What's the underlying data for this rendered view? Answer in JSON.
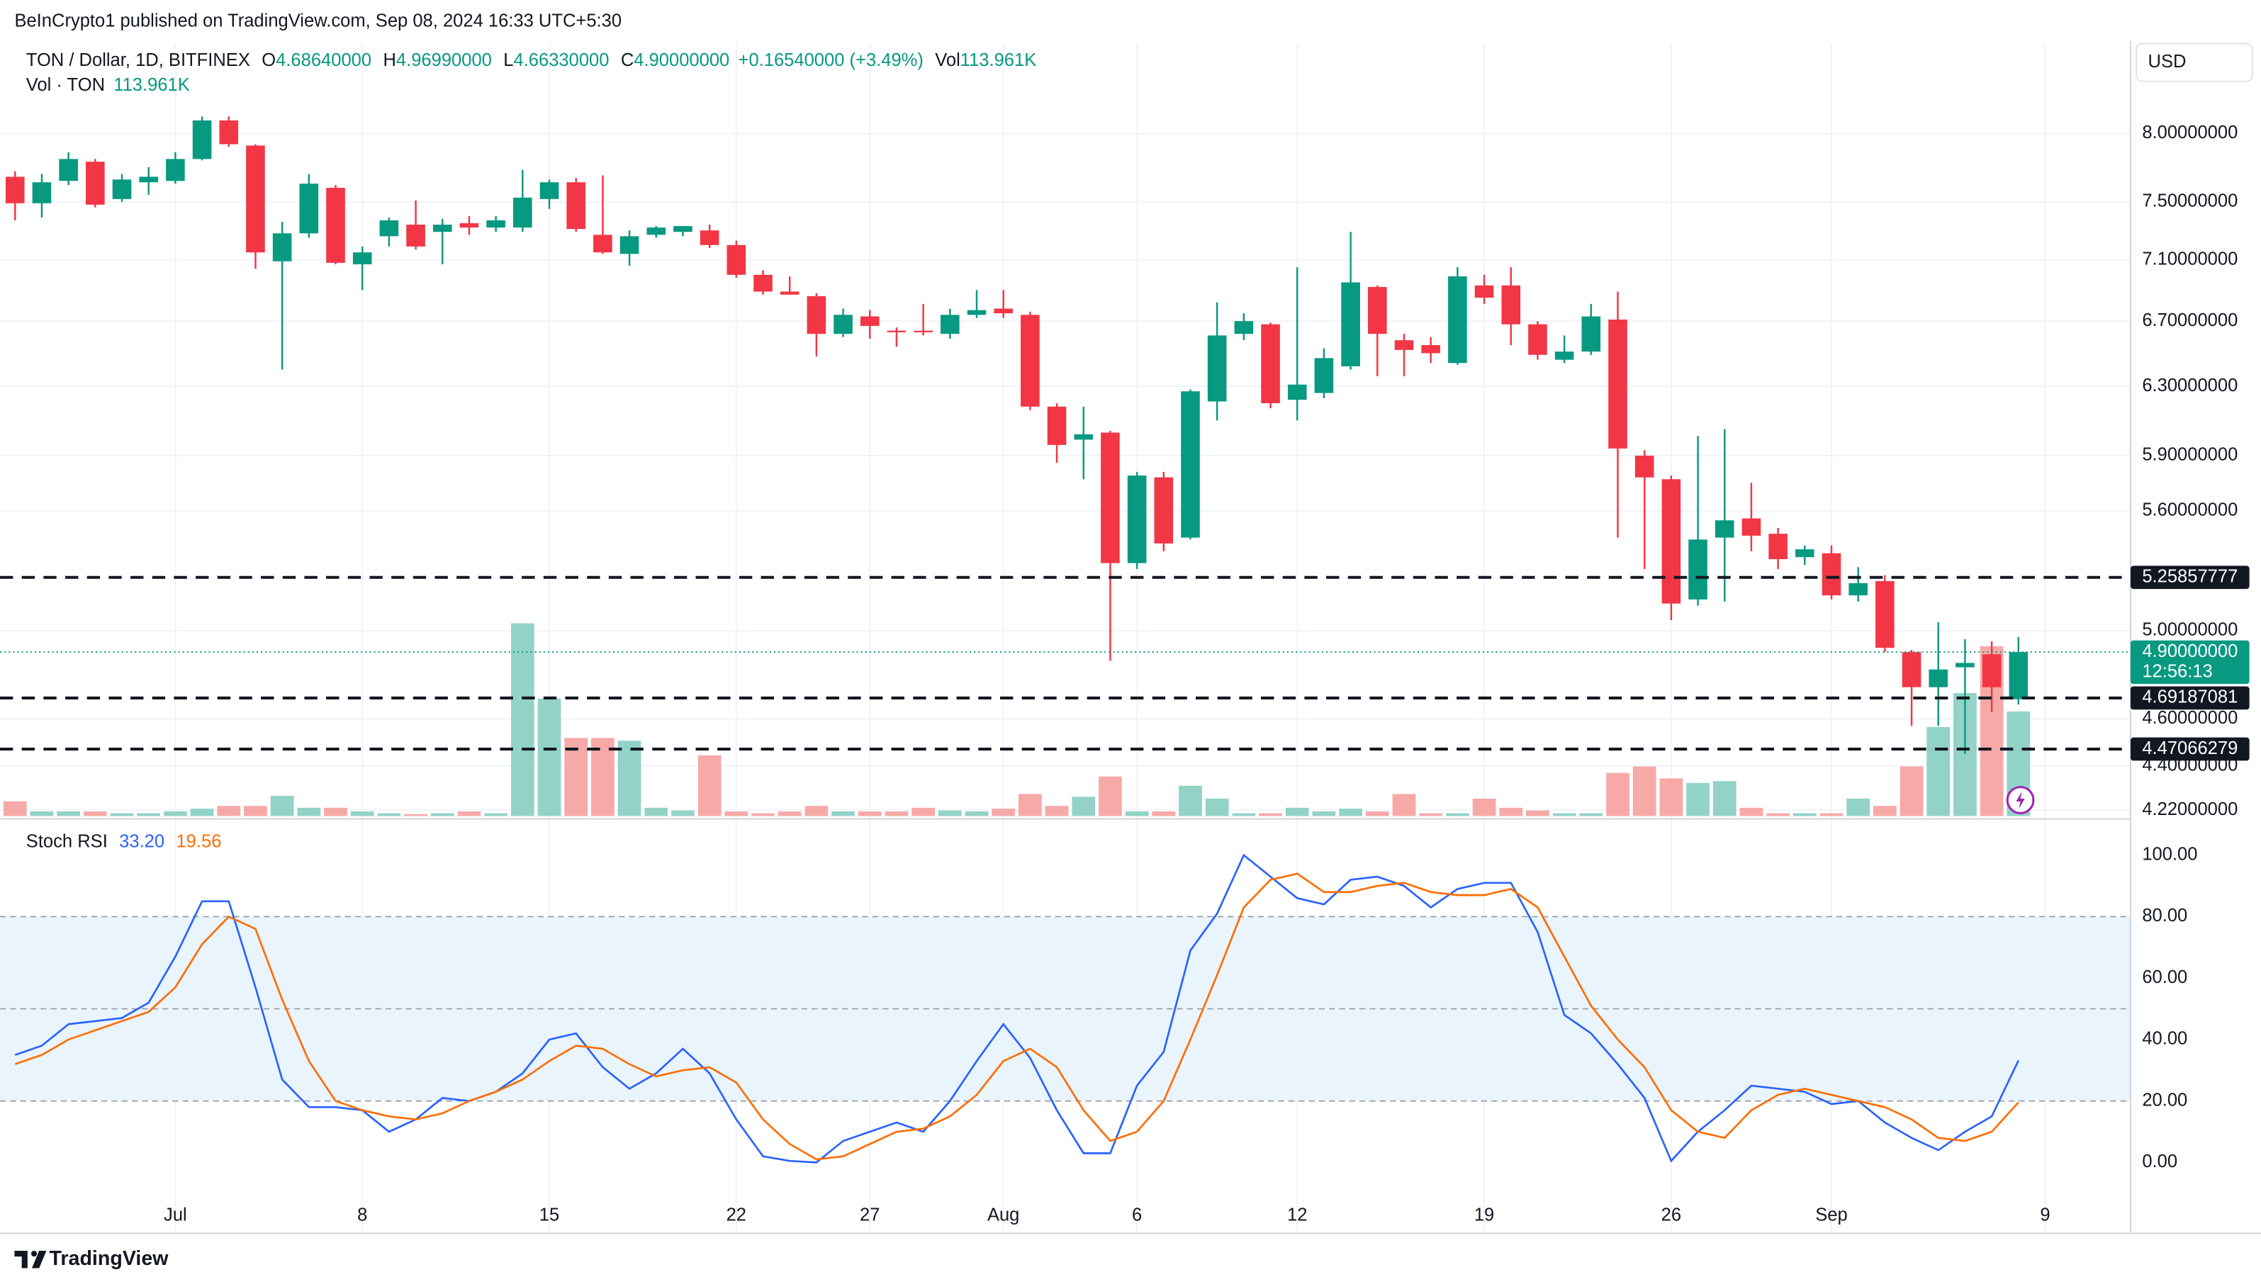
{
  "header": {
    "publisher": "BeInCrypto1 published on TradingView.com, Sep 08, 2024 16:33 UTC+5:30",
    "currency": "USD",
    "brand": "TradingView"
  },
  "chart_data": [
    {
      "type": "candlestick",
      "title": "TON / Dollar, 1D, BITFINEX",
      "ohlc_summary": [
        {
          "key": "O",
          "value": "4.68640000"
        },
        {
          "key": "H",
          "value": "4.96990000"
        },
        {
          "key": "L",
          "value": "4.66330000"
        },
        {
          "key": "C",
          "value": "4.90000000"
        }
      ],
      "change": "+0.16540000 (+3.49%)",
      "vol_key": "Vol",
      "vol_value": "113.961K",
      "volume_title": "Vol · TON",
      "volume_value": "113.961K",
      "categories": [
        "Jun 25",
        "Jun 26",
        "Jun 27",
        "Jun 28",
        "Jun 29",
        "Jun 30",
        "Jul 1",
        "Jul 2",
        "Jul 3",
        "Jul 4",
        "Jul 5",
        "Jul 6",
        "Jul 7",
        "Jul 8",
        "Jul 9",
        "Jul 10",
        "Jul 11",
        "Jul 12",
        "Jul 13",
        "Jul 14",
        "Jul 15",
        "Jul 16",
        "Jul 17",
        "Jul 18",
        "Jul 19",
        "Jul 20",
        "Jul 21",
        "Jul 22",
        "Jul 23",
        "Jul 24",
        "Jul 25",
        "Jul 26",
        "Jul 27",
        "Jul 28",
        "Jul 29",
        "Jul 30",
        "Jul 31",
        "Aug 1",
        "Aug 2",
        "Aug 3",
        "Aug 4",
        "Aug 5",
        "Aug 6",
        "Aug 7",
        "Aug 8",
        "Aug 9",
        "Aug 10",
        "Aug 11",
        "Aug 12",
        "Aug 13",
        "Aug 14",
        "Aug 15",
        "Aug 16",
        "Aug 17",
        "Aug 18",
        "Aug 19",
        "Aug 20",
        "Aug 21",
        "Aug 22",
        "Aug 23",
        "Aug 24",
        "Aug 25",
        "Aug 26",
        "Aug 27",
        "Aug 28",
        "Aug 29",
        "Aug 30",
        "Aug 31",
        "Sep 1",
        "Sep 2",
        "Sep 3",
        "Sep 4",
        "Sep 5",
        "Sep 6",
        "Sep 7",
        "Sep 8"
      ],
      "open": [
        7.68,
        7.49,
        7.65,
        7.79,
        7.52,
        7.64,
        7.65,
        7.81,
        8.1,
        7.91,
        7.09,
        7.28,
        7.6,
        7.07,
        7.26,
        7.34,
        7.29,
        7.35,
        7.32,
        7.32,
        7.52,
        7.64,
        7.27,
        7.14,
        7.27,
        7.29,
        7.3,
        7.2,
        7.0,
        6.89,
        6.86,
        6.62,
        6.73,
        6.64,
        6.64,
        6.62,
        6.74,
        6.78,
        6.74,
        6.18,
        5.99,
        6.03,
        5.33,
        5.78,
        5.46,
        6.21,
        6.62,
        6.68,
        6.22,
        6.26,
        6.42,
        6.92,
        6.58,
        6.55,
        6.44,
        6.93,
        6.93,
        6.68,
        6.46,
        6.51,
        6.71,
        5.9,
        5.77,
        5.15,
        5.46,
        5.56,
        5.48,
        5.36,
        5.38,
        5.17,
        5.24,
        4.9,
        4.74,
        4.83,
        4.89,
        4.6864
      ],
      "high": [
        7.72,
        7.7,
        7.86,
        7.81,
        7.7,
        7.75,
        7.86,
        8.13,
        8.13,
        7.92,
        7.36,
        7.7,
        7.62,
        7.19,
        7.39,
        7.51,
        7.38,
        7.4,
        7.4,
        7.73,
        7.66,
        7.67,
        7.69,
        7.3,
        7.33,
        7.33,
        7.34,
        7.23,
        7.03,
        6.99,
        6.88,
        6.78,
        6.77,
        6.66,
        6.81,
        6.78,
        6.9,
        6.9,
        6.76,
        6.2,
        6.18,
        6.04,
        5.81,
        5.81,
        6.28,
        6.82,
        6.75,
        6.69,
        7.05,
        6.53,
        7.29,
        6.93,
        6.62,
        6.6,
        7.05,
        7.0,
        7.05,
        6.7,
        6.61,
        6.81,
        6.89,
        5.93,
        5.79,
        6.01,
        6.05,
        5.75,
        5.51,
        5.42,
        5.42,
        5.31,
        5.27,
        4.91,
        5.04,
        4.96,
        4.95,
        4.9699
      ],
      "low": [
        7.37,
        7.39,
        7.62,
        7.46,
        7.5,
        7.55,
        7.63,
        7.8,
        7.9,
        7.04,
        6.4,
        7.25,
        7.07,
        6.9,
        7.19,
        7.17,
        7.07,
        7.27,
        7.29,
        7.29,
        7.45,
        7.29,
        7.14,
        7.06,
        7.25,
        7.26,
        7.18,
        6.98,
        6.87,
        6.87,
        6.48,
        6.6,
        6.59,
        6.54,
        6.61,
        6.59,
        6.72,
        6.72,
        6.16,
        5.86,
        5.77,
        4.86,
        5.3,
        5.39,
        5.45,
        6.1,
        6.58,
        6.17,
        6.1,
        6.23,
        6.4,
        6.36,
        6.36,
        6.44,
        6.43,
        6.81,
        6.55,
        6.46,
        6.44,
        6.49,
        5.46,
        5.3,
        5.05,
        5.12,
        5.14,
        5.39,
        5.3,
        5.32,
        5.15,
        5.14,
        4.9,
        4.57,
        4.57,
        4.45,
        4.63,
        4.6633
      ],
      "close": [
        7.49,
        7.64,
        7.81,
        7.48,
        7.66,
        7.68,
        7.81,
        8.1,
        7.92,
        7.15,
        7.28,
        7.63,
        7.08,
        7.15,
        7.37,
        7.19,
        7.34,
        7.32,
        7.37,
        7.53,
        7.64,
        7.31,
        7.15,
        7.26,
        7.32,
        7.33,
        7.2,
        7.0,
        6.89,
        6.87,
        6.62,
        6.74,
        6.67,
        6.63,
        6.63,
        6.74,
        6.77,
        6.75,
        6.18,
        5.96,
        6.02,
        5.33,
        5.79,
        5.43,
        6.27,
        6.61,
        6.7,
        6.2,
        6.31,
        6.47,
        6.95,
        6.62,
        6.52,
        6.5,
        6.99,
        6.85,
        6.68,
        6.49,
        6.51,
        6.73,
        5.94,
        5.78,
        5.13,
        5.45,
        5.55,
        5.47,
        5.35,
        5.4,
        5.17,
        5.23,
        4.92,
        4.74,
        4.82,
        4.85,
        4.74,
        4.9
      ],
      "volume": [
        16,
        5,
        5,
        5,
        3,
        3,
        5,
        8,
        11,
        11,
        22,
        9,
        9,
        5,
        3,
        2,
        3,
        5,
        3,
        210,
        128,
        85,
        85,
        82,
        9,
        6,
        66,
        5,
        3,
        5,
        11,
        5,
        5,
        5,
        9,
        6,
        5,
        8,
        24,
        11,
        21,
        43,
        5,
        5,
        33,
        19,
        3,
        3,
        9,
        5,
        8,
        5,
        24,
        3,
        3,
        19,
        9,
        6,
        3,
        3,
        47,
        54,
        41,
        36,
        38,
        9,
        3,
        3,
        3,
        19,
        11,
        54,
        97,
        134,
        185,
        113.961
      ],
      "up_color": "#089981",
      "down_color": "#f23645",
      "up_volume_color": "#92d2c7",
      "down_volume_color": "#f7a9a8",
      "log_scale": true,
      "grid": true,
      "ylim": [
        4.185,
        8.71
      ],
      "yticks": [
        {
          "value": 4.22,
          "label": "4.22000000"
        },
        {
          "value": 4.4,
          "label": "4.40000000"
        },
        {
          "value": 4.6,
          "label": "4.60000000"
        },
        {
          "value": 5,
          "label": "5.00000000"
        },
        {
          "value": 5.6,
          "label": "5.60000000"
        },
        {
          "value": 5.9,
          "label": "5.90000000"
        },
        {
          "value": 6.3,
          "label": "6.30000000"
        },
        {
          "value": 6.7,
          "label": "6.70000000"
        },
        {
          "value": 7.1,
          "label": "7.10000000"
        },
        {
          "value": 7.5,
          "label": "7.50000000"
        },
        {
          "value": 8,
          "label": "8.00000000"
        }
      ],
      "xticks": [
        {
          "value": "Jul 1",
          "label": "Jul"
        },
        {
          "value": "Jul 8",
          "label": "8"
        },
        {
          "value": "Jul 15",
          "label": "15"
        },
        {
          "value": "Jul 22",
          "label": "22"
        },
        {
          "value": "Jul 27",
          "label": "27"
        },
        {
          "value": "Aug 1",
          "label": "Aug"
        },
        {
          "value": "Aug 6",
          "label": "6"
        },
        {
          "value": "Aug 12",
          "label": "12"
        },
        {
          "value": "Aug 19",
          "label": "19"
        },
        {
          "value": "Aug 26",
          "label": "26"
        },
        {
          "value": "Sep 1",
          "label": "Sep"
        },
        {
          "value": "Sep 9",
          "label": "9"
        }
      ],
      "hlines": [
        5.25857777,
        4.69187081,
        4.47066279
      ],
      "last_price": {
        "value": 4.9,
        "label": "4.90000000"
      },
      "countdown": "12:56:13"
    },
    {
      "type": "line",
      "title": "Stoch RSI",
      "series": [
        {
          "color": "#2962ff",
          "last_label": "33.20",
          "values": [
            35,
            38,
            45,
            46,
            47,
            52,
            67,
            85,
            85,
            57,
            27,
            18,
            18,
            17,
            10,
            14,
            21,
            20,
            23,
            29,
            40,
            42,
            31,
            24,
            29,
            37,
            29,
            14,
            2,
            0.5,
            0,
            7,
            10,
            13,
            10,
            20,
            33,
            45,
            34,
            17,
            3,
            3,
            25,
            36,
            69,
            81,
            100,
            93,
            86,
            84,
            92,
            93,
            90,
            83,
            89,
            91,
            91,
            75,
            48,
            42,
            32,
            21,
            0.5,
            10,
            17,
            25,
            24,
            23,
            19,
            20,
            13,
            8,
            4,
            10,
            15,
            33.2
          ]
        },
        {
          "color": "#ff6d00",
          "last_label": "19.56",
          "values": [
            32,
            35,
            40,
            43,
            46,
            49,
            57,
            71,
            80,
            76,
            53,
            33,
            20,
            17,
            15,
            14,
            16,
            20,
            23,
            27,
            33,
            38,
            37,
            32,
            28,
            30,
            31,
            26,
            14,
            6,
            1,
            2,
            6,
            10,
            11,
            15,
            22,
            33,
            37,
            31,
            17,
            7,
            10,
            20,
            40,
            61,
            83,
            92,
            94,
            88,
            88,
            90,
            91,
            88,
            87,
            87,
            89,
            83,
            67,
            51,
            40,
            31,
            17,
            10,
            8,
            17,
            22,
            24,
            22,
            20,
            18,
            14,
            8,
            7,
            10,
            19.56
          ]
        }
      ],
      "ylim": [
        -22.6,
        111.8
      ],
      "yticks": [
        {
          "value": 0,
          "label": "0.00"
        },
        {
          "value": 20,
          "label": "20.00"
        },
        {
          "value": 40,
          "label": "40.00"
        },
        {
          "value": 60,
          "label": "60.00"
        },
        {
          "value": 80,
          "label": "80.00"
        },
        {
          "value": 100,
          "label": "100.00"
        }
      ],
      "band": [
        20,
        80
      ],
      "midline": 50
    }
  ]
}
